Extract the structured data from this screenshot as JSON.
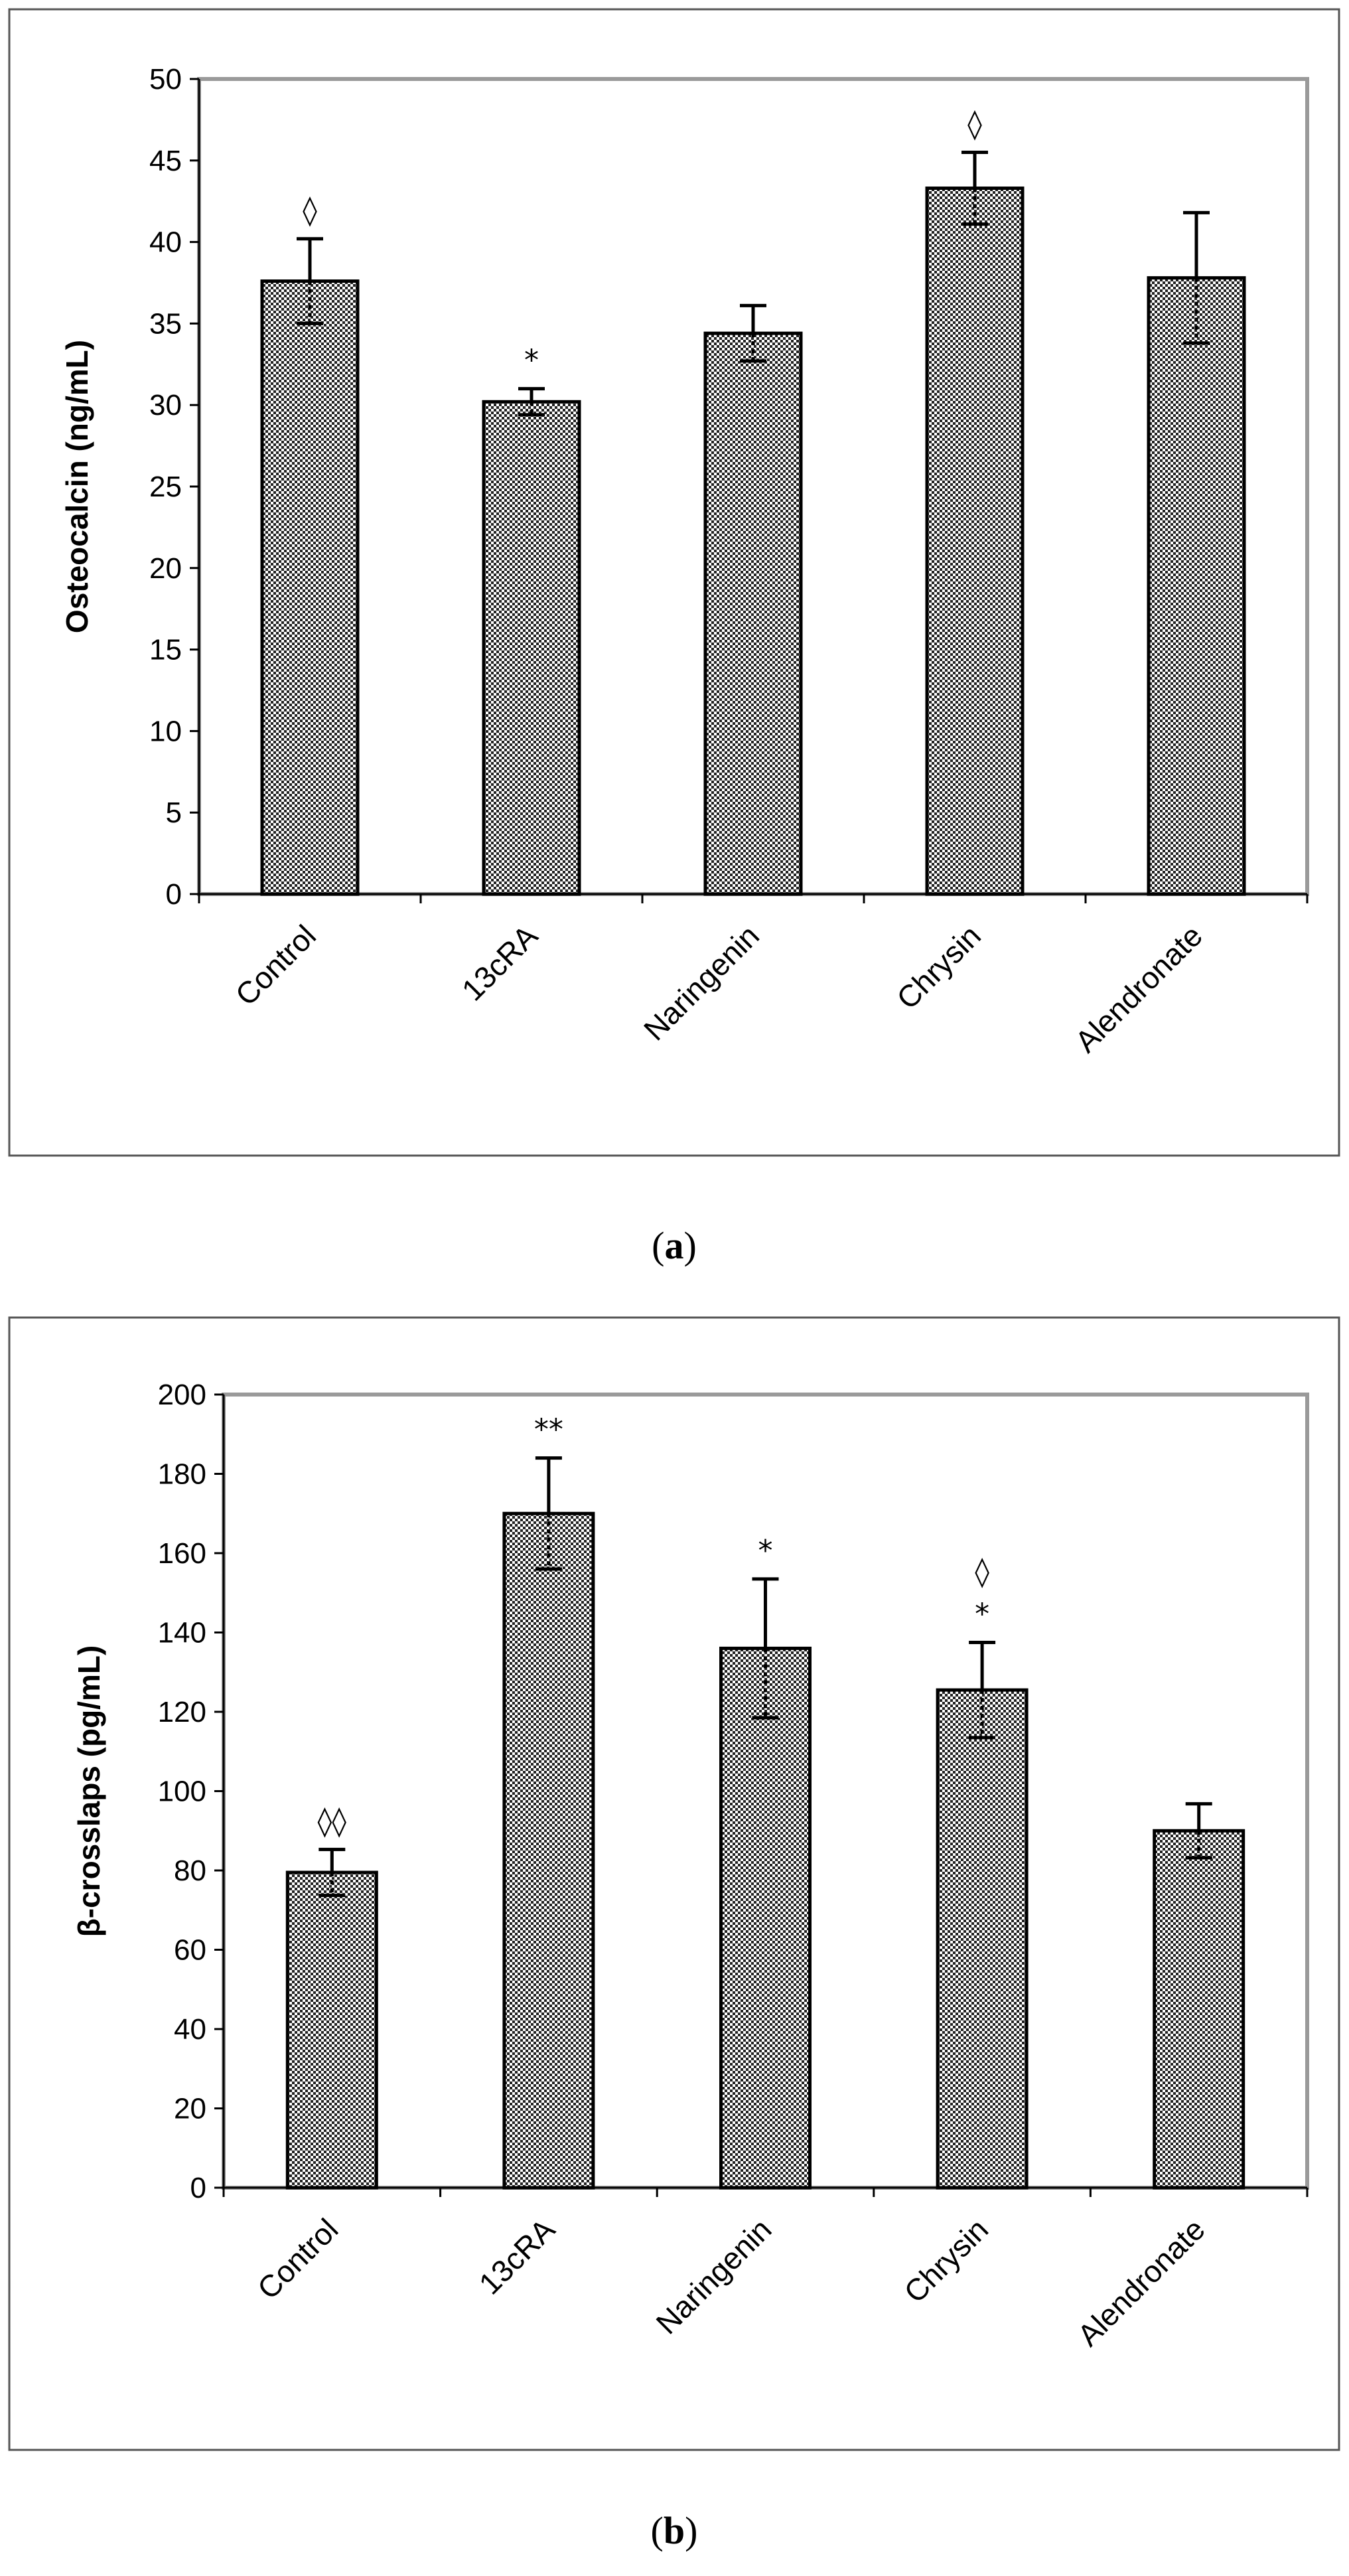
{
  "chart_data": [
    {
      "type": "bar",
      "panel": "a",
      "caption": {
        "open": "(",
        "letter": "a",
        "close": ")"
      },
      "title": "",
      "xlabel": "",
      "ylabel": "Osteocalcin  (ng/mL)",
      "ylim": [
        0,
        50
      ],
      "yticks": [
        0,
        5,
        10,
        15,
        20,
        25,
        30,
        35,
        40,
        45,
        50
      ],
      "categories": [
        "Control",
        "13cRA",
        "Naringenin",
        "Chrysin",
        "Alendronate"
      ],
      "values": [
        37.6,
        30.2,
        34.4,
        43.3,
        37.8
      ],
      "errors": [
        2.6,
        0.8,
        1.7,
        2.2,
        4.0
      ],
      "annotations": [
        "◊",
        "*",
        "",
        "◊",
        ""
      ],
      "grid": false,
      "colors": {
        "bar_pattern_dark": "#222222",
        "bar_pattern_light": "#ffffff",
        "plot_border": "#9a9a9a"
      }
    },
    {
      "type": "bar",
      "panel": "b",
      "caption": {
        "open": "(",
        "letter": "b",
        "close": ")"
      },
      "title": "",
      "xlabel": "",
      "ylabel": "β-crosslaps (pg/mL)",
      "ylim": [
        0,
        200
      ],
      "yticks": [
        0,
        20,
        40,
        60,
        80,
        100,
        120,
        140,
        160,
        180,
        200
      ],
      "categories": [
        "Control",
        "13cRA",
        "Naringenin",
        "Chrysin",
        "Alendronate"
      ],
      "values": [
        79.5,
        170,
        136,
        125.5,
        90
      ],
      "errors": [
        5.8,
        14,
        17.5,
        12,
        6.8
      ],
      "annotations": [
        "◊◊",
        "**",
        "*",
        "*",
        ""
      ],
      "annotations_extra": [
        "",
        "",
        "",
        "◊",
        ""
      ],
      "grid": false,
      "colors": {
        "bar_pattern_dark": "#222222",
        "bar_pattern_light": "#ffffff",
        "plot_border": "#9a9a9a"
      }
    }
  ]
}
